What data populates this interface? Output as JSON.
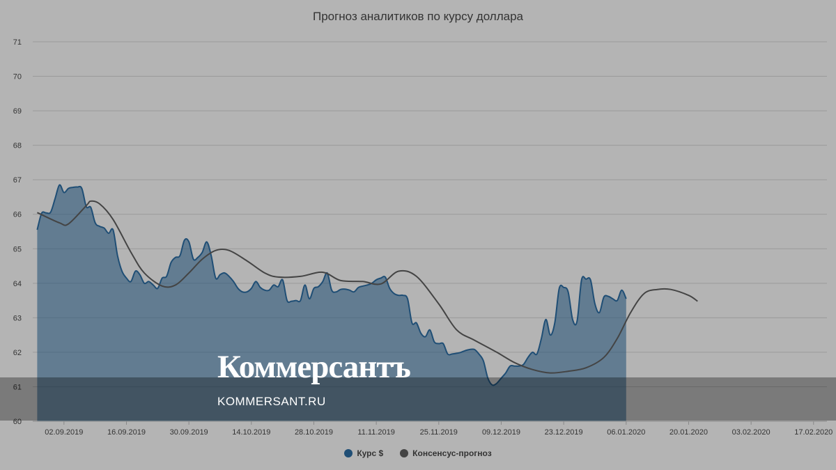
{
  "chart_data": {
    "type": "area",
    "title": "Прогноз аналитиков по курсу доллара",
    "ylim": [
      60,
      71
    ],
    "yticks": [
      60,
      61,
      62,
      63,
      64,
      65,
      66,
      67,
      68,
      69,
      70,
      71
    ],
    "x_range": [
      "2019-08-26",
      "2020-02-20"
    ],
    "xtick_labels": [
      "02.09.2019",
      "16.09.2019",
      "30.09.2019",
      "14.10.2019",
      "28.10.2019",
      "11.11.2019",
      "25.11.2019",
      "09.12.2019",
      "23.12.2019",
      "06.01.2020",
      "20.01.2020",
      "03.02.2020",
      "17.02.2020"
    ],
    "grid": true,
    "legend_position": "bottom",
    "series": [
      {
        "name": "Курс $",
        "kind": "area",
        "color": "#1f4e75",
        "points": [
          [
            "2019-08-27",
            65.55
          ],
          [
            "2019-08-28",
            66.03
          ],
          [
            "2019-08-29",
            66.04
          ],
          [
            "2019-08-30",
            66.06
          ],
          [
            "2019-08-31",
            66.45
          ],
          [
            "2019-09-01",
            66.85
          ],
          [
            "2019-09-02",
            66.63
          ],
          [
            "2019-09-03",
            66.75
          ],
          [
            "2019-09-04",
            66.78
          ],
          [
            "2019-09-05",
            66.79
          ],
          [
            "2019-09-06",
            66.75
          ],
          [
            "2019-09-07",
            66.22
          ],
          [
            "2019-09-08",
            66.2
          ],
          [
            "2019-09-09",
            65.75
          ],
          [
            "2019-09-10",
            65.65
          ],
          [
            "2019-09-11",
            65.6
          ],
          [
            "2019-09-12",
            65.45
          ],
          [
            "2019-09-13",
            65.55
          ],
          [
            "2019-09-14",
            64.8
          ],
          [
            "2019-09-15",
            64.35
          ],
          [
            "2019-09-16",
            64.15
          ],
          [
            "2019-09-17",
            64.05
          ],
          [
            "2019-09-18",
            64.35
          ],
          [
            "2019-09-19",
            64.25
          ],
          [
            "2019-09-20",
            64.0
          ],
          [
            "2019-09-21",
            64.05
          ],
          [
            "2019-09-22",
            63.95
          ],
          [
            "2019-09-23",
            63.85
          ],
          [
            "2019-09-24",
            64.15
          ],
          [
            "2019-09-25",
            64.2
          ],
          [
            "2019-09-26",
            64.6
          ],
          [
            "2019-09-27",
            64.75
          ],
          [
            "2019-09-28",
            64.8
          ],
          [
            "2019-09-29",
            65.25
          ],
          [
            "2019-09-30",
            65.2
          ],
          [
            "2019-10-01",
            64.7
          ],
          [
            "2019-10-02",
            64.75
          ],
          [
            "2019-10-03",
            64.9
          ],
          [
            "2019-10-04",
            65.2
          ],
          [
            "2019-10-05",
            64.8
          ],
          [
            "2019-10-06",
            64.15
          ],
          [
            "2019-10-07",
            64.25
          ],
          [
            "2019-10-08",
            64.3
          ],
          [
            "2019-10-09",
            64.2
          ],
          [
            "2019-10-10",
            64.05
          ],
          [
            "2019-10-11",
            63.85
          ],
          [
            "2019-10-12",
            63.75
          ],
          [
            "2019-10-13",
            63.75
          ],
          [
            "2019-10-14",
            63.85
          ],
          [
            "2019-10-15",
            64.05
          ],
          [
            "2019-10-16",
            63.88
          ],
          [
            "2019-10-17",
            63.8
          ],
          [
            "2019-10-18",
            63.8
          ],
          [
            "2019-10-19",
            63.95
          ],
          [
            "2019-10-20",
            63.9
          ],
          [
            "2019-10-21",
            64.1
          ],
          [
            "2019-10-22",
            63.5
          ],
          [
            "2019-10-23",
            63.48
          ],
          [
            "2019-10-24",
            63.5
          ],
          [
            "2019-10-25",
            63.5
          ],
          [
            "2019-10-26",
            63.95
          ],
          [
            "2019-10-27",
            63.55
          ],
          [
            "2019-10-28",
            63.85
          ],
          [
            "2019-10-29",
            63.9
          ],
          [
            "2019-10-30",
            64.05
          ],
          [
            "2019-10-31",
            64.3
          ],
          [
            "2019-11-01",
            63.8
          ],
          [
            "2019-11-02",
            63.75
          ],
          [
            "2019-11-03",
            63.82
          ],
          [
            "2019-11-04",
            63.83
          ],
          [
            "2019-11-05",
            63.8
          ],
          [
            "2019-11-06",
            63.75
          ],
          [
            "2019-11-07",
            63.88
          ],
          [
            "2019-11-08",
            63.92
          ],
          [
            "2019-11-09",
            63.95
          ],
          [
            "2019-11-10",
            64.0
          ],
          [
            "2019-11-11",
            64.1
          ],
          [
            "2019-11-12",
            64.15
          ],
          [
            "2019-11-13",
            64.18
          ],
          [
            "2019-11-14",
            63.85
          ],
          [
            "2019-11-15",
            63.7
          ],
          [
            "2019-11-16",
            63.65
          ],
          [
            "2019-11-17",
            63.65
          ],
          [
            "2019-11-18",
            63.55
          ],
          [
            "2019-11-19",
            62.85
          ],
          [
            "2019-11-20",
            62.85
          ],
          [
            "2019-11-21",
            62.55
          ],
          [
            "2019-11-22",
            62.45
          ],
          [
            "2019-11-23",
            62.65
          ],
          [
            "2019-11-24",
            62.3
          ],
          [
            "2019-11-25",
            62.25
          ],
          [
            "2019-11-26",
            62.25
          ],
          [
            "2019-11-27",
            61.95
          ],
          [
            "2019-11-28",
            61.95
          ],
          [
            "2019-11-29",
            61.97
          ],
          [
            "2019-11-30",
            62.0
          ],
          [
            "2019-12-01",
            62.05
          ],
          [
            "2019-12-02",
            62.08
          ],
          [
            "2019-12-03",
            62.08
          ],
          [
            "2019-12-04",
            61.95
          ],
          [
            "2019-12-05",
            61.75
          ],
          [
            "2019-12-06",
            61.25
          ],
          [
            "2019-12-07",
            61.05
          ],
          [
            "2019-12-08",
            61.1
          ],
          [
            "2019-12-09",
            61.25
          ],
          [
            "2019-12-10",
            61.4
          ],
          [
            "2019-12-11",
            61.6
          ],
          [
            "2019-12-12",
            61.6
          ],
          [
            "2019-12-13",
            61.6
          ],
          [
            "2019-12-14",
            61.65
          ],
          [
            "2019-12-15",
            61.85
          ],
          [
            "2019-12-16",
            62.0
          ],
          [
            "2019-12-17",
            61.95
          ],
          [
            "2019-12-18",
            62.4
          ],
          [
            "2019-12-19",
            62.95
          ],
          [
            "2019-12-20",
            62.5
          ],
          [
            "2019-12-21",
            62.85
          ],
          [
            "2019-12-22",
            63.85
          ],
          [
            "2019-12-23",
            63.88
          ],
          [
            "2019-12-24",
            63.75
          ],
          [
            "2019-12-25",
            62.95
          ],
          [
            "2019-12-26",
            62.9
          ],
          [
            "2019-12-27",
            64.1
          ],
          [
            "2019-12-28",
            64.12
          ],
          [
            "2019-12-29",
            64.1
          ],
          [
            "2019-12-30",
            63.4
          ],
          [
            "2019-12-31",
            63.15
          ],
          [
            "2020-01-01",
            63.6
          ],
          [
            "2020-01-02",
            63.62
          ],
          [
            "2020-01-03",
            63.55
          ],
          [
            "2020-01-04",
            63.5
          ],
          [
            "2020-01-05",
            63.8
          ],
          [
            "2020-01-06",
            63.55
          ]
        ]
      },
      {
        "name": "Консенсус-прогноз",
        "kind": "line",
        "color": "#444444",
        "points": [
          [
            "2019-08-27",
            66.05
          ],
          [
            "2019-09-01",
            65.75
          ],
          [
            "2019-09-03",
            65.72
          ],
          [
            "2019-09-07",
            66.25
          ],
          [
            "2019-09-08",
            66.38
          ],
          [
            "2019-09-10",
            66.3
          ],
          [
            "2019-09-13",
            65.85
          ],
          [
            "2019-09-17",
            64.9
          ],
          [
            "2019-09-20",
            64.3
          ],
          [
            "2019-09-24",
            63.92
          ],
          [
            "2019-09-27",
            63.95
          ],
          [
            "2019-09-30",
            64.3
          ],
          [
            "2019-10-03",
            64.7
          ],
          [
            "2019-10-06",
            64.95
          ],
          [
            "2019-10-09",
            64.95
          ],
          [
            "2019-10-13",
            64.65
          ],
          [
            "2019-10-17",
            64.3
          ],
          [
            "2019-10-20",
            64.18
          ],
          [
            "2019-10-25",
            64.2
          ],
          [
            "2019-10-30",
            64.32
          ],
          [
            "2019-11-03",
            64.08
          ],
          [
            "2019-11-08",
            64.05
          ],
          [
            "2019-11-12",
            63.98
          ],
          [
            "2019-11-16",
            64.35
          ],
          [
            "2019-11-20",
            64.2
          ],
          [
            "2019-11-25",
            63.4
          ],
          [
            "2019-11-29",
            62.65
          ],
          [
            "2019-12-03",
            62.35
          ],
          [
            "2019-12-08",
            62.0
          ],
          [
            "2019-12-12",
            61.7
          ],
          [
            "2019-12-16",
            61.5
          ],
          [
            "2019-12-20",
            61.4
          ],
          [
            "2019-12-24",
            61.45
          ],
          [
            "2019-12-28",
            61.55
          ],
          [
            "2020-01-01",
            61.85
          ],
          [
            "2020-01-04",
            62.4
          ],
          [
            "2020-01-07",
            63.15
          ],
          [
            "2020-01-10",
            63.7
          ],
          [
            "2020-01-13",
            63.82
          ],
          [
            "2020-01-16",
            63.82
          ],
          [
            "2020-01-20",
            63.65
          ],
          [
            "2020-01-22",
            63.48
          ]
        ]
      }
    ]
  },
  "legend": [
    {
      "label": "Курс $",
      "color": "#1f4e75"
    },
    {
      "label": "Консенсус-прогноз",
      "color": "#444444"
    }
  ],
  "watermark": {
    "logo": "Коммерсантъ",
    "url": "KOMMERSANT.RU"
  }
}
